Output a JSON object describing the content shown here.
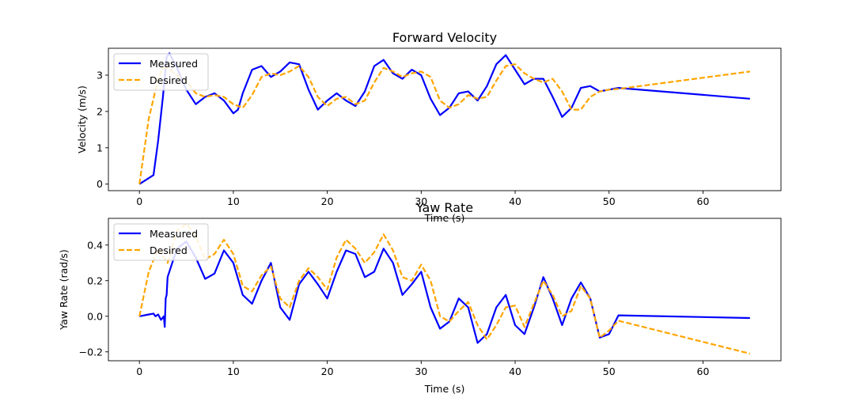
{
  "chart_data": [
    {
      "type": "line",
      "title": "Forward Velocity",
      "xlabel": "Time (s)",
      "ylabel": "Velocity (m/s)",
      "xlim": [
        -3.3,
        68.3
      ],
      "ylim": [
        -0.18,
        3.74
      ],
      "xticks": [
        0,
        10,
        20,
        30,
        40,
        50,
        60
      ],
      "yticks": [
        0,
        1,
        2,
        3
      ],
      "legend": "top-left",
      "series": [
        {
          "name": "Measured",
          "color": "#0000ff",
          "style": "solid",
          "x": [
            0,
            1.5,
            2,
            2.5,
            2.9,
            3.2,
            4,
            5,
            6,
            7,
            8,
            9,
            10,
            10.5,
            11,
            12,
            13,
            14,
            15,
            16,
            17,
            18,
            19,
            20,
            21,
            22,
            23,
            24,
            25,
            26,
            27,
            28,
            29,
            30,
            31,
            32,
            33,
            34,
            35,
            36,
            37,
            38,
            39,
            40,
            41,
            42,
            43,
            44,
            45,
            46,
            47,
            48,
            49,
            50,
            51,
            65
          ],
          "y": [
            0,
            0.25,
            1.2,
            2.4,
            3.5,
            3.6,
            3.2,
            2.6,
            2.2,
            2.4,
            2.5,
            2.3,
            1.95,
            2.05,
            2.5,
            3.15,
            3.25,
            2.95,
            3.1,
            3.35,
            3.3,
            2.6,
            2.05,
            2.3,
            2.5,
            2.3,
            2.15,
            2.55,
            3.25,
            3.42,
            3.05,
            2.9,
            3.15,
            3.0,
            2.35,
            1.9,
            2.1,
            2.5,
            2.55,
            2.3,
            2.7,
            3.3,
            3.55,
            3.15,
            2.75,
            2.9,
            2.9,
            2.4,
            1.85,
            2.1,
            2.65,
            2.7,
            2.55,
            2.6,
            2.65,
            2.35
          ]
        },
        {
          "name": "Desired",
          "color": "#ffa500",
          "style": "dashed",
          "x": [
            0,
            1,
            2,
            2.5,
            3,
            4,
            5,
            6,
            7,
            8,
            9,
            10,
            11,
            12,
            13,
            14,
            15,
            16,
            17,
            18,
            19,
            20,
            21,
            22,
            23,
            24,
            25,
            26,
            27,
            28,
            29,
            30,
            31,
            32,
            33,
            34,
            35,
            36,
            37,
            38,
            39,
            40,
            41,
            42,
            43,
            44,
            45,
            46,
            47,
            48,
            49,
            50,
            51,
            65
          ],
          "y": [
            0,
            1.8,
            2.9,
            3.2,
            3.2,
            3.0,
            2.85,
            2.5,
            2.4,
            2.45,
            2.4,
            2.2,
            2.1,
            2.45,
            2.95,
            3.05,
            3.0,
            3.1,
            3.25,
            2.95,
            2.4,
            2.15,
            2.35,
            2.4,
            2.2,
            2.3,
            2.8,
            3.2,
            3.1,
            2.95,
            3.05,
            3.1,
            2.95,
            2.3,
            2.1,
            2.2,
            2.45,
            2.35,
            2.4,
            2.85,
            3.25,
            3.3,
            3.05,
            2.9,
            2.8,
            2.9,
            2.55,
            2.05,
            2.05,
            2.4,
            2.55,
            2.6,
            2.62,
            3.1
          ]
        }
      ]
    },
    {
      "type": "line",
      "title": "Yaw Rate",
      "xlabel": "Time (s)",
      "ylabel": "Yaw Rate (rad/s)",
      "xlim": [
        -3.3,
        68.3
      ],
      "ylim": [
        -0.25,
        0.55
      ],
      "xticks": [
        0,
        10,
        20,
        30,
        40,
        50,
        60
      ],
      "yticks": [
        -0.2,
        0.0,
        0.2,
        0.4
      ],
      "ytick_labels": [
        "−0.2",
        "0.0",
        "0.2",
        "0.4"
      ],
      "legend": "top-left",
      "series": [
        {
          "name": "Measured",
          "color": "#0000ff",
          "style": "solid",
          "x": [
            0,
            1,
            1.5,
            1.7,
            2,
            2.3,
            2.6,
            2.7,
            2.8,
            2.9,
            3,
            3.5,
            4,
            5,
            6,
            7,
            8,
            9,
            10,
            11,
            12,
            13,
            14,
            15,
            16,
            17,
            18,
            19,
            20,
            21,
            22,
            23,
            24,
            25,
            26,
            27,
            28,
            29,
            30,
            31,
            32,
            33,
            34,
            35,
            36,
            37,
            38,
            39,
            40,
            41,
            42,
            43,
            44,
            45,
            46,
            47,
            48,
            49,
            50,
            51,
            65
          ],
          "y": [
            0,
            0.01,
            0.015,
            0.0,
            0.01,
            -0.02,
            0.0,
            -0.06,
            0.1,
            0.12,
            0.22,
            0.3,
            0.38,
            0.42,
            0.33,
            0.21,
            0.24,
            0.37,
            0.3,
            0.12,
            0.07,
            0.2,
            0.3,
            0.05,
            -0.02,
            0.18,
            0.25,
            0.18,
            0.1,
            0.25,
            0.37,
            0.35,
            0.22,
            0.25,
            0.38,
            0.3,
            0.12,
            0.18,
            0.25,
            0.05,
            -0.07,
            -0.03,
            0.1,
            0.05,
            -0.15,
            -0.1,
            0.05,
            0.12,
            -0.05,
            -0.1,
            0.05,
            0.22,
            0.1,
            -0.05,
            0.1,
            0.19,
            0.1,
            -0.12,
            -0.1,
            0.005,
            -0.01
          ]
        },
        {
          "name": "Desired",
          "color": "#ffa500",
          "style": "dashed",
          "x": [
            0,
            1,
            2,
            3,
            4,
            5,
            6,
            7,
            8,
            9,
            10,
            11,
            12,
            13,
            14,
            15,
            16,
            17,
            18,
            19,
            20,
            21,
            22,
            23,
            24,
            25,
            26,
            27,
            28,
            29,
            30,
            31,
            32,
            33,
            34,
            35,
            36,
            37,
            38,
            39,
            40,
            41,
            42,
            43,
            44,
            45,
            46,
            47,
            48,
            49,
            50,
            51,
            65
          ],
          "y": [
            0,
            0.25,
            0.38,
            0.3,
            0.48,
            0.52,
            0.45,
            0.32,
            0.35,
            0.43,
            0.35,
            0.17,
            0.14,
            0.23,
            0.28,
            0.1,
            0.05,
            0.2,
            0.27,
            0.22,
            0.15,
            0.33,
            0.43,
            0.38,
            0.3,
            0.36,
            0.46,
            0.37,
            0.22,
            0.2,
            0.29,
            0.2,
            0.0,
            -0.03,
            0.03,
            0.08,
            -0.05,
            -0.13,
            -0.05,
            0.05,
            0.06,
            -0.06,
            0.07,
            0.2,
            0.12,
            0.0,
            0.03,
            0.17,
            0.1,
            -0.12,
            -0.08,
            -0.025,
            -0.21
          ]
        }
      ]
    }
  ]
}
